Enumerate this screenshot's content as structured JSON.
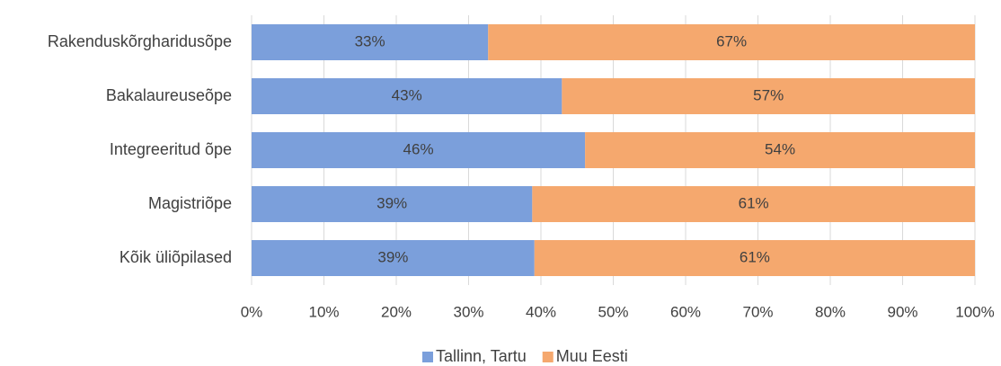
{
  "chart_data": {
    "type": "stacked_bar_horizontal",
    "categories": [
      "Rakenduskõrgharidusõpe",
      "Bakalaureuseõpe",
      "Integreeritud õpe",
      "Magistriõpe",
      "Kõik üliõpilased"
    ],
    "series": [
      {
        "name": "Tallinn, Tartu",
        "color": "#7b9fdb",
        "values": [
          32.7,
          42.9,
          46.1,
          38.8,
          39.1
        ],
        "value_labels": [
          "33%",
          "43%",
          "46%",
          "39%",
          "39%"
        ]
      },
      {
        "name": "Muu Eesti",
        "color": "#f5a86e",
        "values": [
          67.3,
          57.1,
          53.9,
          61.2,
          60.9
        ],
        "value_labels": [
          "67%",
          "57%",
          "54%",
          "61%",
          "61%"
        ]
      }
    ],
    "xlim": [
      0,
      100
    ],
    "xticks": [
      {
        "value": 0,
        "label": "0%"
      },
      {
        "value": 10,
        "label": "10%"
      },
      {
        "value": 20,
        "label": "20%"
      },
      {
        "value": 30,
        "label": "30%"
      },
      {
        "value": 40,
        "label": "40%"
      },
      {
        "value": 50,
        "label": "50%"
      },
      {
        "value": 60,
        "label": "60%"
      },
      {
        "value": 70,
        "label": "70%"
      },
      {
        "value": 80,
        "label": "80%"
      },
      {
        "value": 90,
        "label": "90%"
      },
      {
        "value": 100,
        "label": "100%"
      }
    ],
    "grid": true,
    "legend": "bottom"
  }
}
